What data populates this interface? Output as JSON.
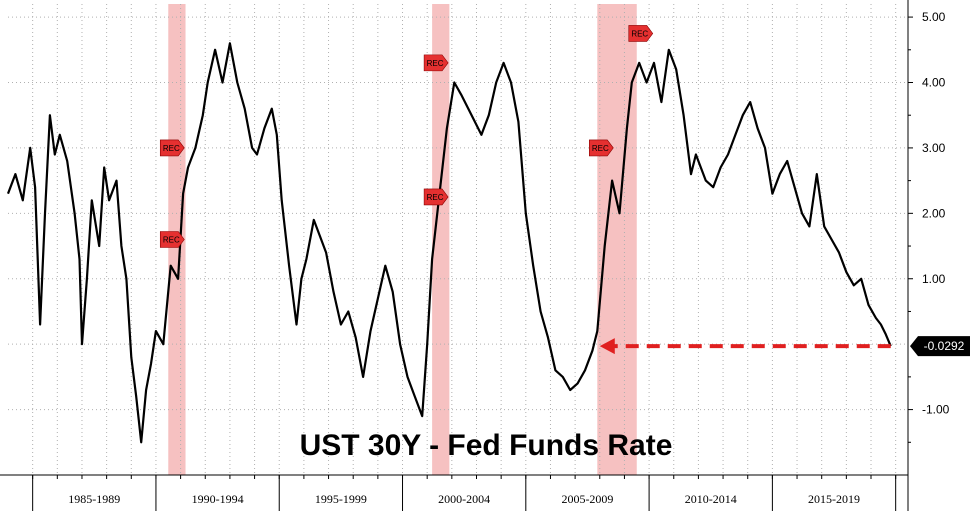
{
  "chart_data": {
    "type": "line",
    "title": "UST 30Y - Fed Funds Rate",
    "xlabel": "",
    "ylabel": "",
    "x_period_labels": [
      "1985-1989",
      "1990-1994",
      "1995-1999",
      "2000-2004",
      "2005-2009",
      "2010-2014",
      "2015-2019"
    ],
    "xlim": [
      1984.0,
      2020.5
    ],
    "ylim": [
      -2.0,
      5.2
    ],
    "y_ticks": [
      "5.00",
      "4.00",
      "3.00",
      "2.00",
      "1.00",
      "-1.00"
    ],
    "y_tick_values": [
      5,
      4,
      3,
      2,
      1,
      -1
    ],
    "grid": true,
    "last_value": "-0.0292",
    "recession_periods": [
      [
        1990.5,
        1991.2
      ],
      [
        2001.2,
        2001.9
      ],
      [
        2007.9,
        2009.5
      ]
    ],
    "rec_marker_label": "REC",
    "rec_markers": [
      {
        "date": 1990.5,
        "value": 3.0
      },
      {
        "date": 1990.5,
        "value": 1.6
      },
      {
        "date": 2001.2,
        "value": 4.3
      },
      {
        "date": 2001.2,
        "value": 2.25
      },
      {
        "date": 2007.9,
        "value": 3.0
      },
      {
        "date": 2009.5,
        "value": 4.75
      }
    ],
    "series": [
      {
        "points": [
          [
            1984.0,
            2.3
          ],
          [
            1984.3,
            2.6
          ],
          [
            1984.6,
            2.2
          ],
          [
            1984.9,
            3.0
          ],
          [
            1985.1,
            2.4
          ],
          [
            1985.3,
            0.3
          ],
          [
            1985.5,
            2.0
          ],
          [
            1985.7,
            3.5
          ],
          [
            1985.9,
            2.9
          ],
          [
            1986.1,
            3.2
          ],
          [
            1986.4,
            2.8
          ],
          [
            1986.7,
            2.0
          ],
          [
            1986.9,
            1.3
          ],
          [
            1987.0,
            0.0
          ],
          [
            1987.2,
            1.0
          ],
          [
            1987.4,
            2.2
          ],
          [
            1987.7,
            1.5
          ],
          [
            1987.9,
            2.7
          ],
          [
            1988.1,
            2.2
          ],
          [
            1988.4,
            2.5
          ],
          [
            1988.6,
            1.5
          ],
          [
            1988.8,
            1.0
          ],
          [
            1989.0,
            -0.2
          ],
          [
            1989.2,
            -0.8
          ],
          [
            1989.4,
            -1.5
          ],
          [
            1989.6,
            -0.7
          ],
          [
            1989.8,
            -0.3
          ],
          [
            1990.0,
            0.2
          ],
          [
            1990.3,
            0.0
          ],
          [
            1990.6,
            1.2
          ],
          [
            1990.9,
            1.0
          ],
          [
            1991.1,
            2.3
          ],
          [
            1991.3,
            2.7
          ],
          [
            1991.6,
            3.0
          ],
          [
            1991.9,
            3.5
          ],
          [
            1992.1,
            4.0
          ],
          [
            1992.4,
            4.5
          ],
          [
            1992.7,
            4.0
          ],
          [
            1993.0,
            4.6
          ],
          [
            1993.3,
            4.0
          ],
          [
            1993.6,
            3.6
          ],
          [
            1993.9,
            3.0
          ],
          [
            1994.1,
            2.9
          ],
          [
            1994.4,
            3.3
          ],
          [
            1994.7,
            3.6
          ],
          [
            1994.9,
            3.2
          ],
          [
            1995.1,
            2.2
          ],
          [
            1995.4,
            1.2
          ],
          [
            1995.7,
            0.3
          ],
          [
            1995.9,
            1.0
          ],
          [
            1996.1,
            1.3
          ],
          [
            1996.4,
            1.9
          ],
          [
            1996.7,
            1.6
          ],
          [
            1996.9,
            1.4
          ],
          [
            1997.2,
            0.8
          ],
          [
            1997.5,
            0.3
          ],
          [
            1997.8,
            0.5
          ],
          [
            1998.1,
            0.1
          ],
          [
            1998.4,
            -0.5
          ],
          [
            1998.7,
            0.2
          ],
          [
            1999.0,
            0.7
          ],
          [
            1999.3,
            1.2
          ],
          [
            1999.6,
            0.8
          ],
          [
            1999.9,
            0.0
          ],
          [
            2000.2,
            -0.5
          ],
          [
            2000.5,
            -0.8
          ],
          [
            2000.8,
            -1.1
          ],
          [
            2001.0,
            0.0
          ],
          [
            2001.2,
            1.3
          ],
          [
            2001.5,
            2.3
          ],
          [
            2001.8,
            3.3
          ],
          [
            2002.1,
            4.0
          ],
          [
            2002.4,
            3.8
          ],
          [
            2002.8,
            3.5
          ],
          [
            2003.2,
            3.2
          ],
          [
            2003.5,
            3.5
          ],
          [
            2003.8,
            4.0
          ],
          [
            2004.1,
            4.3
          ],
          [
            2004.4,
            4.0
          ],
          [
            2004.7,
            3.4
          ],
          [
            2005.0,
            2.0
          ],
          [
            2005.3,
            1.2
          ],
          [
            2005.6,
            0.5
          ],
          [
            2005.9,
            0.1
          ],
          [
            2006.2,
            -0.4
          ],
          [
            2006.5,
            -0.5
          ],
          [
            2006.8,
            -0.7
          ],
          [
            2007.1,
            -0.6
          ],
          [
            2007.4,
            -0.4
          ],
          [
            2007.7,
            -0.1
          ],
          [
            2007.9,
            0.2
          ],
          [
            2008.2,
            1.5
          ],
          [
            2008.5,
            2.5
          ],
          [
            2008.8,
            2.0
          ],
          [
            2009.1,
            3.3
          ],
          [
            2009.3,
            4.0
          ],
          [
            2009.6,
            4.3
          ],
          [
            2009.9,
            4.0
          ],
          [
            2010.2,
            4.3
          ],
          [
            2010.5,
            3.7
          ],
          [
            2010.8,
            4.5
          ],
          [
            2011.1,
            4.2
          ],
          [
            2011.4,
            3.5
          ],
          [
            2011.7,
            2.6
          ],
          [
            2011.9,
            2.9
          ],
          [
            2012.3,
            2.5
          ],
          [
            2012.6,
            2.4
          ],
          [
            2012.9,
            2.7
          ],
          [
            2013.2,
            2.9
          ],
          [
            2013.5,
            3.2
          ],
          [
            2013.8,
            3.5
          ],
          [
            2014.1,
            3.7
          ],
          [
            2014.4,
            3.3
          ],
          [
            2014.7,
            3.0
          ],
          [
            2015.0,
            2.3
          ],
          [
            2015.3,
            2.6
          ],
          [
            2015.6,
            2.8
          ],
          [
            2015.9,
            2.4
          ],
          [
            2016.2,
            2.0
          ],
          [
            2016.5,
            1.8
          ],
          [
            2016.8,
            2.6
          ],
          [
            2017.1,
            1.8
          ],
          [
            2017.4,
            1.6
          ],
          [
            2017.7,
            1.4
          ],
          [
            2018.0,
            1.1
          ],
          [
            2018.3,
            0.9
          ],
          [
            2018.6,
            1.0
          ],
          [
            2018.9,
            0.6
          ],
          [
            2019.2,
            0.4
          ],
          [
            2019.4,
            0.3
          ],
          [
            2019.6,
            0.15
          ],
          [
            2019.8,
            -0.03
          ]
        ]
      }
    ]
  }
}
